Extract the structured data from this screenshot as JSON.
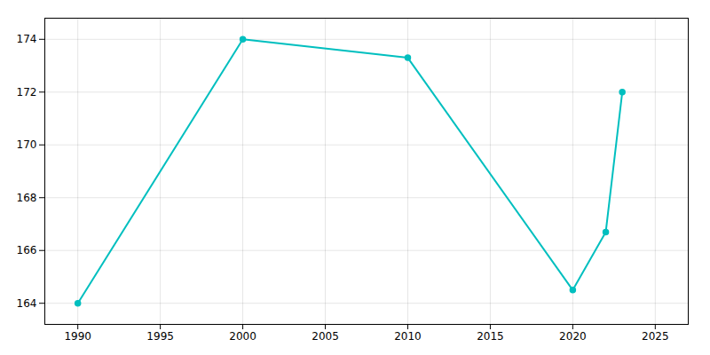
{
  "chart_data": {
    "type": "line",
    "x": [
      1990,
      2000,
      2010,
      2020,
      2022,
      2023
    ],
    "values": [
      164,
      174,
      173.3,
      164.5,
      166.7,
      172
    ],
    "color": "#00BFBF",
    "marker": "circle",
    "xlim": [
      1988,
      2027
    ],
    "ylim": [
      163.2,
      174.8
    ],
    "xticks": [
      1990,
      1995,
      2000,
      2005,
      2010,
      2015,
      2020,
      2025
    ],
    "yticks": [
      164,
      166,
      168,
      170,
      172,
      174
    ],
    "grid": true
  }
}
